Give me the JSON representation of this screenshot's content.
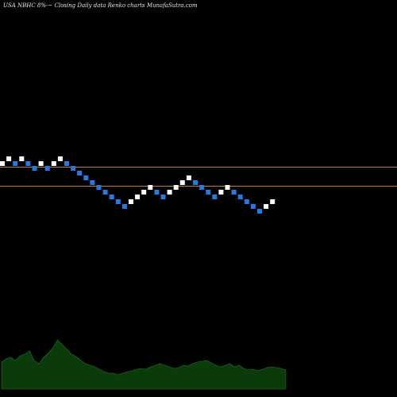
{
  "chart_data": {
    "type": "renko",
    "title": "USA NBHC 8%-~  Closing Daily data  Renko  charts MunafaSutra.com",
    "colors": {
      "background": "#000000",
      "up_brick": "#ffffff",
      "down_brick": "#1e7be8",
      "reference_line": "#c8782a",
      "volume_fill": "#0b3a0b",
      "volume_stroke": "#1f7a1f"
    },
    "reference_levels": [
      210,
      234
    ],
    "brick_directions": [
      "up",
      "up",
      "down",
      "up",
      "down",
      "down",
      "up",
      "down",
      "up",
      "up",
      "down",
      "down",
      "down",
      "down",
      "down",
      "down",
      "down",
      "down",
      "down",
      "down",
      "up",
      "up",
      "up",
      "up",
      "down",
      "down",
      "up",
      "up",
      "up",
      "up",
      "down",
      "down",
      "down",
      "down",
      "up",
      "up",
      "down",
      "down",
      "down",
      "down",
      "down",
      "up",
      "up"
    ],
    "volume_values": [
      34,
      38,
      40,
      36,
      42,
      44,
      48,
      36,
      32,
      40,
      45,
      52,
      62,
      56,
      50,
      44,
      41,
      36,
      32,
      30,
      28,
      25,
      22,
      20,
      20,
      18,
      20,
      22,
      23,
      25,
      26,
      25,
      28,
      30,
      32,
      30,
      28,
      26,
      27,
      30,
      29,
      32,
      34,
      35,
      36,
      33,
      30,
      28,
      30,
      32,
      28,
      30,
      26,
      24,
      25,
      23,
      25,
      27,
      28,
      27,
      26,
      24
    ]
  }
}
